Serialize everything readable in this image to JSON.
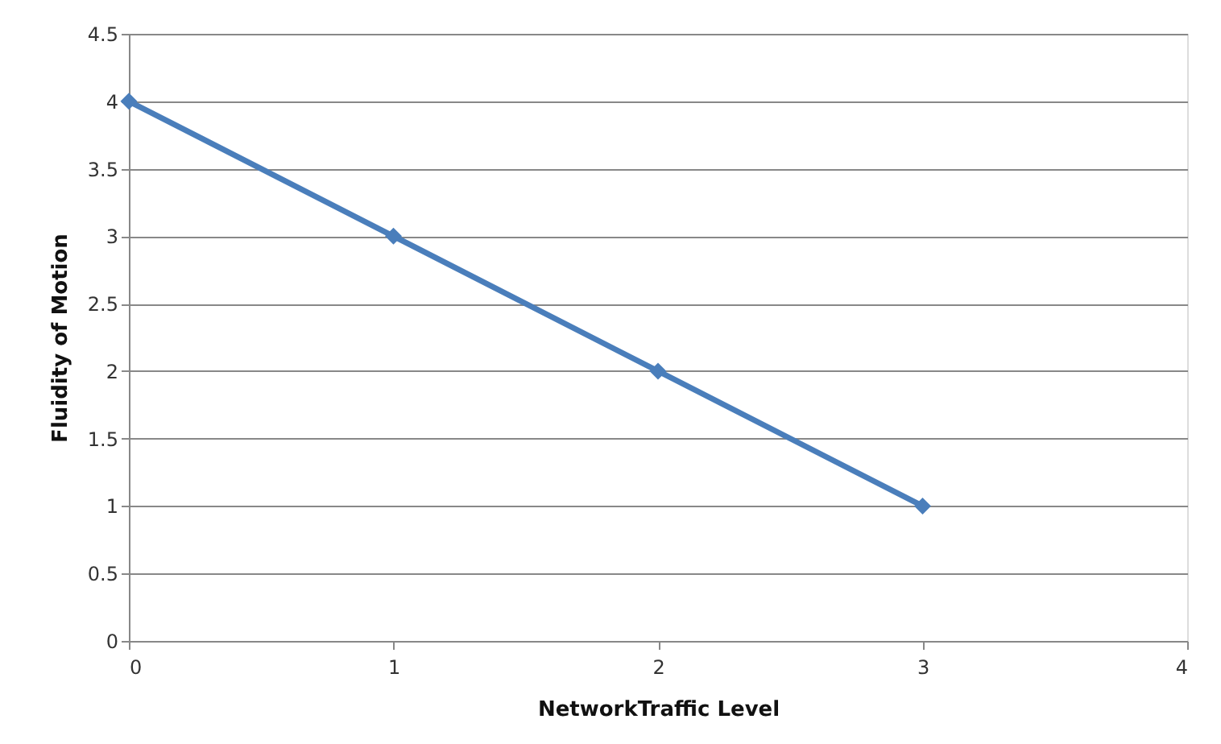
{
  "chart_data": {
    "type": "line",
    "xlabel": "NetworkTraffic Level",
    "ylabel": "Fluidity of Motion",
    "x": [
      0,
      1,
      2,
      3
    ],
    "series": [
      {
        "color": "#4a7ebb",
        "values": [
          4,
          3,
          2,
          1
        ]
      }
    ],
    "xlim": [
      0,
      4
    ],
    "xticks": [
      0,
      1,
      2,
      3,
      4
    ],
    "ylim": [
      0,
      4.5
    ],
    "yticks": [
      0,
      0.5,
      1,
      1.5,
      2,
      2.5,
      3,
      3.5,
      4,
      4.5
    ],
    "grid": "y",
    "marker": "diamond",
    "line_style": "solid"
  }
}
